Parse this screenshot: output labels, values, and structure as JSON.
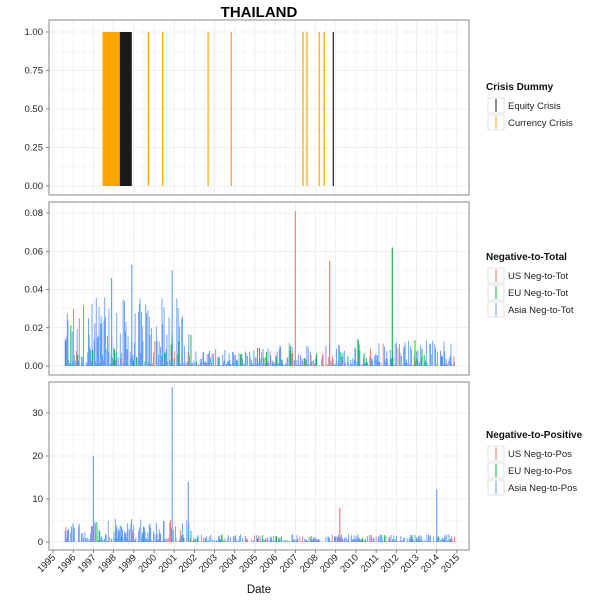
{
  "chart_data": [
    {
      "type": "bar",
      "title": "THAILAND",
      "xlabel": "Date",
      "ylabel": "",
      "ylim": [
        0,
        1
      ],
      "yticks": [
        "0.00",
        "0.25",
        "0.50",
        "0.75",
        "1.00"
      ],
      "x_ticks": [
        "1995",
        "1996",
        "1997",
        "1998",
        "1999",
        "2000",
        "2001",
        "2002",
        "2003",
        "2004",
        "2005",
        "2006",
        "2007",
        "2008",
        "2009",
        "2010",
        "2011",
        "2012",
        "2013",
        "2014",
        "2015"
      ],
      "legend_title": "Crisis Dummy",
      "series": [
        {
          "name": "Equity Crisis",
          "color": "#1a1a1a",
          "periods": [
            [
              1998.3,
              1998.9
            ],
            [
              1997.85,
              1997.95
            ],
            [
              2008.85,
              2008.9
            ]
          ]
        },
        {
          "name": "Currency Crisis",
          "color": "#ffa500",
          "periods": [
            [
              1997.45,
              1998.3
            ],
            [
              1999.7,
              1999.75
            ],
            [
              2000.4,
              2000.45
            ],
            [
              2002.65,
              2002.7
            ],
            [
              2003.8,
              2003.85
            ],
            [
              2007.35,
              2007.4
            ],
            [
              2007.55,
              2007.6
            ],
            [
              2008.15,
              2008.2
            ],
            [
              2008.4,
              2008.45
            ]
          ]
        }
      ]
    },
    {
      "type": "bar",
      "xlabel": "Date",
      "ylabel": "",
      "ylim": [
        0,
        0.085
      ],
      "yticks": [
        "0.00",
        "0.02",
        "0.04",
        "0.06",
        "0.08"
      ],
      "legend_title": "Negative-to-Total",
      "series": [
        {
          "name": "US Neg-to-Tot",
          "color": "#f8766d"
        },
        {
          "name": "EU Neg-to-Tot",
          "color": "#00ba38"
        },
        {
          "name": "Asia Neg-to-Tot",
          "color": "#619cff"
        }
      ],
      "spikes": [
        {
          "series": "US Neg-to-Tot",
          "x": 2007.0,
          "y": 0.081
        },
        {
          "series": "US Neg-to-Tot",
          "x": 2008.7,
          "y": 0.055
        },
        {
          "series": "EU Neg-to-Tot",
          "x": 2011.8,
          "y": 0.062
        },
        {
          "series": "Asia Neg-to-Tot",
          "x": 2000.9,
          "y": 0.05
        },
        {
          "series": "Asia Neg-to-Tot",
          "x": 1998.9,
          "y": 0.053
        },
        {
          "series": "Asia Neg-to-Tot",
          "x": 1997.9,
          "y": 0.046
        }
      ]
    },
    {
      "type": "bar",
      "xlabel": "Date",
      "ylabel": "",
      "ylim": [
        0,
        36
      ],
      "yticks": [
        "0",
        "10",
        "20",
        "30"
      ],
      "legend_title": "Negative-to-Positive",
      "series": [
        {
          "name": "US Neg-to-Pos",
          "color": "#f8766d"
        },
        {
          "name": "EU Neg-to-Pos",
          "color": "#00ba38"
        },
        {
          "name": "Asia Neg-to-Pos",
          "color": "#619cff"
        }
      ],
      "spikes": [
        {
          "series": "Asia Neg-to-Pos",
          "x": 2000.9,
          "y": 36
        },
        {
          "series": "Asia Neg-to-Pos",
          "x": 1997.0,
          "y": 20
        },
        {
          "series": "Asia Neg-to-Pos",
          "x": 2014.0,
          "y": 12.2
        },
        {
          "series": "US Neg-to-Pos",
          "x": 2009.2,
          "y": 8.0
        },
        {
          "series": "Asia Neg-to-Pos",
          "x": 2001.7,
          "y": 14.0
        }
      ]
    }
  ]
}
